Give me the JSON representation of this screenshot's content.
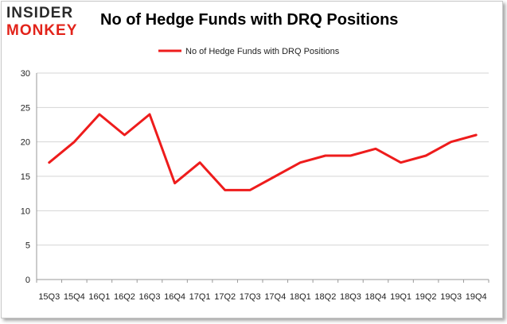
{
  "brand": {
    "logo_top": "INSIDER",
    "logo_bottom": "MONKEY"
  },
  "header": {
    "title": "No of Hedge Funds with DRQ Positions"
  },
  "colors": {
    "series": "#ee1c1c",
    "grid": "#d4d4d4",
    "axis": "#999999",
    "logo_red": "#e2231a"
  },
  "chart_data": {
    "type": "line",
    "title": "No of Hedge Funds with DRQ Positions",
    "xlabel": "",
    "ylabel": "",
    "ylim": [
      0,
      30
    ],
    "yticks": [
      0,
      5,
      10,
      15,
      20,
      25,
      30
    ],
    "grid": true,
    "legend_position": "top",
    "categories": [
      "15Q3",
      "15Q4",
      "16Q1",
      "16Q2",
      "16Q3",
      "16Q4",
      "17Q1",
      "17Q2",
      "17Q3",
      "17Q4",
      "18Q1",
      "18Q2",
      "18Q3",
      "18Q4",
      "19Q1",
      "19Q2",
      "19Q3",
      "19Q4"
    ],
    "series": [
      {
        "name": "No of Hedge Funds with DRQ Positions",
        "values": [
          17,
          20,
          24,
          21,
          24,
          14,
          17,
          13,
          13,
          15,
          17,
          18,
          18,
          19,
          17,
          18,
          20,
          21
        ]
      }
    ]
  }
}
